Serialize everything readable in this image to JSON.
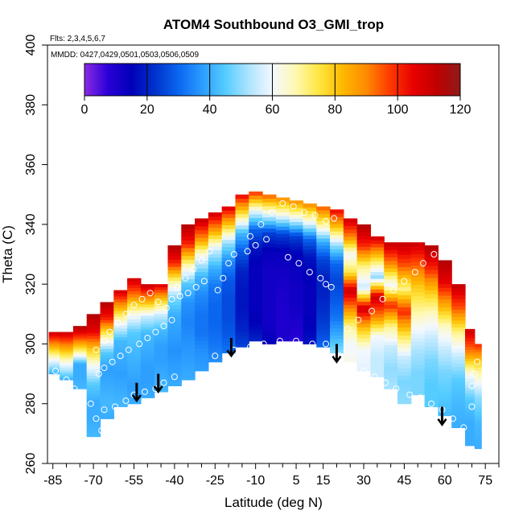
{
  "chart_data": {
    "type": "heatmap",
    "title": "ATOM4 Southbound O3_GMI_trop",
    "flights_label": "Flts: 2,3,4,5,6,7",
    "dates_label": "MMDD: 0427,0429,0501,0503,0506,0509",
    "xlabel": "Latitude (deg N)",
    "ylabel": "Theta (C)",
    "xlim": [
      -87,
      80
    ],
    "ylim": [
      260,
      400
    ],
    "x_ticks": [
      -85,
      -70,
      -55,
      -40,
      -25,
      -10,
      5,
      15,
      30,
      45,
      60,
      75
    ],
    "x_tick_labels": [
      "-85",
      "-70",
      "-55",
      "-40",
      "-25",
      "-10",
      "5",
      "15",
      "30",
      "45",
      "60",
      "75"
    ],
    "y_ticks": [
      260,
      280,
      300,
      320,
      340,
      360,
      380,
      400
    ],
    "y_tick_labels": [
      "260",
      "280",
      "300",
      "320",
      "340",
      "360",
      "380",
      "400"
    ],
    "colorbar": {
      "min": 0,
      "max": 120,
      "ticks": [
        0,
        20,
        40,
        60,
        80,
        100,
        120
      ],
      "tick_labels": [
        "0",
        "20",
        "40",
        "60",
        "80",
        "100",
        "120"
      ],
      "stops": [
        "#8b2be2",
        "#2b00d8",
        "#0000b8",
        "#0033cc",
        "#0a66f0",
        "#2a9cff",
        "#55ccff",
        "#aee4ff",
        "#f4f8ff",
        "#fff8b0",
        "#ffe640",
        "#ffb800",
        "#ff8a00",
        "#ff3a00",
        "#e80000",
        "#c00000",
        "#8f1a1a"
      ]
    },
    "field_columns": [
      {
        "lat": -85,
        "bottom": 290,
        "top": 304,
        "values": [
          40,
          60,
          85,
          110
        ]
      },
      {
        "lat": -80,
        "bottom": 288,
        "top": 304,
        "values": [
          40,
          60,
          85,
          110
        ]
      },
      {
        "lat": -75,
        "bottom": 285,
        "top": 306,
        "values": [
          42,
          40,
          40,
          70,
          95,
          115
        ]
      },
      {
        "lat": -70,
        "bottom": 269,
        "top": 310,
        "values": [
          42,
          40,
          40,
          45,
          60,
          80,
          105,
          115
        ]
      },
      {
        "lat": -65,
        "bottom": 275,
        "top": 314,
        "values": [
          40,
          42,
          40,
          38,
          45,
          70,
          100,
          115
        ]
      },
      {
        "lat": -60,
        "bottom": 279,
        "top": 318,
        "values": [
          42,
          40,
          38,
          40,
          42,
          60,
          85,
          110
        ]
      },
      {
        "lat": -55,
        "bottom": 280,
        "top": 322,
        "values": [
          40,
          38,
          40,
          42,
          45,
          62,
          90,
          110
        ]
      },
      {
        "lat": -50,
        "bottom": 282,
        "top": 320,
        "values": [
          40,
          38,
          38,
          40,
          42,
          55,
          85,
          112
        ]
      },
      {
        "lat": -45,
        "bottom": 284,
        "top": 320,
        "values": [
          42,
          40,
          38,
          38,
          42,
          55,
          80,
          108
        ]
      },
      {
        "lat": -40,
        "bottom": 286,
        "top": 333,
        "values": [
          40,
          38,
          36,
          38,
          40,
          48,
          70,
          100,
          115
        ]
      },
      {
        "lat": -35,
        "bottom": 288,
        "top": 340,
        "values": [
          40,
          38,
          36,
          34,
          36,
          45,
          70,
          100,
          115
        ]
      },
      {
        "lat": -30,
        "bottom": 291,
        "top": 342,
        "values": [
          38,
          36,
          32,
          32,
          35,
          42,
          60,
          90,
          112
        ]
      },
      {
        "lat": -25,
        "bottom": 294,
        "top": 344,
        "values": [
          36,
          32,
          30,
          30,
          32,
          40,
          55,
          85,
          110
        ]
      },
      {
        "lat": -20,
        "bottom": 297,
        "top": 346,
        "values": [
          32,
          28,
          26,
          26,
          28,
          35,
          50,
          80,
          108
        ]
      },
      {
        "lat": -15,
        "bottom": 299,
        "top": 350,
        "values": [
          25,
          20,
          18,
          18,
          20,
          28,
          42,
          75,
          105
        ]
      },
      {
        "lat": -10,
        "bottom": 301,
        "top": 351,
        "values": [
          20,
          15,
          14,
          14,
          14,
          18,
          30,
          60,
          100
        ]
      },
      {
        "lat": -5,
        "bottom": 300,
        "top": 350,
        "values": [
          15,
          12,
          12,
          12,
          12,
          14,
          25,
          60,
          95
        ]
      },
      {
        "lat": 0,
        "bottom": 301,
        "top": 349,
        "values": [
          10,
          10,
          10,
          11,
          12,
          14,
          25,
          60,
          90
        ]
      },
      {
        "lat": 5,
        "bottom": 301,
        "top": 348,
        "values": [
          8,
          10,
          12,
          12,
          13,
          15,
          25,
          60,
          90
        ]
      },
      {
        "lat": 10,
        "bottom": 300,
        "top": 347,
        "values": [
          18,
          15,
          14,
          14,
          15,
          18,
          30,
          62,
          90
        ]
      },
      {
        "lat": 15,
        "bottom": 299,
        "top": 346,
        "values": [
          30,
          25,
          22,
          20,
          20,
          25,
          40,
          70,
          95
        ]
      },
      {
        "lat": 20,
        "bottom": 297,
        "top": 345,
        "values": [
          50,
          40,
          32,
          28,
          25,
          30,
          50,
          80,
          105
        ]
      },
      {
        "lat": 25,
        "bottom": 294,
        "top": 342,
        "values": [
          62,
          60,
          70,
          90,
          110,
          75,
          60,
          90,
          110
        ]
      },
      {
        "lat": 30,
        "bottom": 291,
        "top": 340,
        "values": [
          58,
          60,
          80,
          110,
          55,
          70,
          100,
          115
        ]
      },
      {
        "lat": 35,
        "bottom": 289,
        "top": 336,
        "values": [
          55,
          55,
          60,
          90,
          110,
          50,
          80,
          110
        ]
      },
      {
        "lat": 40,
        "bottom": 285,
        "top": 334,
        "values": [
          52,
          50,
          55,
          70,
          100,
          60,
          90,
          112
        ]
      },
      {
        "lat": 45,
        "bottom": 280,
        "top": 334,
        "values": [
          50,
          48,
          55,
          75,
          100,
          70,
          95,
          112
        ]
      },
      {
        "lat": 50,
        "bottom": 283,
        "top": 334,
        "values": [
          48,
          48,
          52,
          60,
          70,
          80,
          95,
          110
        ]
      },
      {
        "lat": 55,
        "bottom": 279,
        "top": 333,
        "values": [
          45,
          45,
          48,
          55,
          65,
          80,
          100,
          115
        ]
      },
      {
        "lat": 60,
        "bottom": 276,
        "top": 328,
        "values": [
          42,
          45,
          48,
          55,
          65,
          85,
          105,
          115
        ]
      },
      {
        "lat": 65,
        "bottom": 272,
        "top": 320,
        "values": [
          40,
          42,
          45,
          55,
          70,
          95,
          112
        ]
      },
      {
        "lat": 70,
        "bottom": 266,
        "top": 305,
        "values": [
          40,
          40,
          45,
          60,
          90,
          110
        ]
      },
      {
        "lat": 72,
        "bottom": 265,
        "top": 300,
        "values": [
          40,
          42,
          50,
          70,
          100
        ]
      }
    ],
    "sample_points": [
      [
        -84,
        291
      ],
      [
        -80,
        288
      ],
      [
        -77,
        285
      ],
      [
        -74,
        283
      ],
      [
        -71,
        280
      ],
      [
        -69,
        275
      ],
      [
        -67,
        271
      ],
      [
        -66,
        278
      ],
      [
        -62,
        279
      ],
      [
        -58,
        281
      ],
      [
        -55,
        283
      ],
      [
        -51,
        284
      ],
      [
        -47,
        285
      ],
      [
        -44,
        287
      ],
      [
        -40,
        289
      ],
      [
        -68,
        290
      ],
      [
        -66,
        292
      ],
      [
        -63,
        294
      ],
      [
        -60,
        296
      ],
      [
        -57,
        298
      ],
      [
        -53,
        300
      ],
      [
        -50,
        302
      ],
      [
        -47,
        304
      ],
      [
        -44,
        306
      ],
      [
        -41,
        308
      ],
      [
        -69,
        298
      ],
      [
        -66,
        301
      ],
      [
        -64,
        304
      ],
      [
        -61,
        307
      ],
      [
        -58,
        310
      ],
      [
        -55,
        313
      ],
      [
        -52,
        315
      ],
      [
        -49,
        317
      ],
      [
        -46,
        314
      ],
      [
        -43,
        312
      ],
      [
        -39,
        319
      ],
      [
        -36,
        322
      ],
      [
        -33,
        325
      ],
      [
        -30,
        328
      ],
      [
        -27,
        331
      ],
      [
        -24,
        318
      ],
      [
        -22,
        322
      ],
      [
        -20,
        327
      ],
      [
        -18,
        330
      ],
      [
        -41,
        315
      ],
      [
        -38,
        316
      ],
      [
        -35,
        317
      ],
      [
        -32,
        319
      ],
      [
        -29,
        321
      ],
      [
        -12,
        336
      ],
      [
        -8,
        340
      ],
      [
        -4,
        344
      ],
      [
        0,
        347
      ],
      [
        4,
        346
      ],
      [
        8,
        344
      ],
      [
        12,
        343
      ],
      [
        16,
        341
      ],
      [
        19,
        342
      ],
      [
        -13,
        331
      ],
      [
        -10,
        333
      ],
      [
        -6,
        335
      ],
      [
        2,
        329
      ],
      [
        6,
        327
      ],
      [
        10,
        324
      ],
      [
        14,
        322
      ],
      [
        16,
        320
      ],
      [
        18,
        319
      ],
      [
        -25,
        296
      ],
      [
        -18,
        298
      ],
      [
        -12,
        299
      ],
      [
        -7,
        300
      ],
      [
        -1,
        301
      ],
      [
        5,
        301
      ],
      [
        11,
        300
      ],
      [
        16,
        300
      ],
      [
        21,
        296
      ],
      [
        25,
        293
      ],
      [
        30,
        291
      ],
      [
        34,
        289
      ],
      [
        38,
        287
      ],
      [
        42,
        285
      ],
      [
        47,
        283
      ],
      [
        51,
        282
      ],
      [
        55,
        280
      ],
      [
        59,
        278
      ],
      [
        63,
        275
      ],
      [
        67,
        272
      ],
      [
        24,
        305
      ],
      [
        28,
        308
      ],
      [
        33,
        311
      ],
      [
        37,
        315
      ],
      [
        41,
        318
      ],
      [
        45,
        321
      ],
      [
        49,
        324
      ],
      [
        52,
        327
      ],
      [
        56,
        330
      ],
      [
        60,
        333
      ],
      [
        70,
        286
      ],
      [
        71,
        290
      ],
      [
        72,
        294
      ],
      [
        70,
        279
      ]
    ],
    "arrows": [
      {
        "lat": -54,
        "theta_top": 287,
        "theta_bottom": 281
      },
      {
        "lat": -46,
        "theta_top": 290,
        "theta_bottom": 284
      },
      {
        "lat": -19,
        "theta_top": 302,
        "theta_bottom": 296
      },
      {
        "lat": 20,
        "theta_top": 300,
        "theta_bottom": 294
      },
      {
        "lat": 59,
        "theta_top": 279,
        "theta_bottom": 273
      }
    ]
  }
}
